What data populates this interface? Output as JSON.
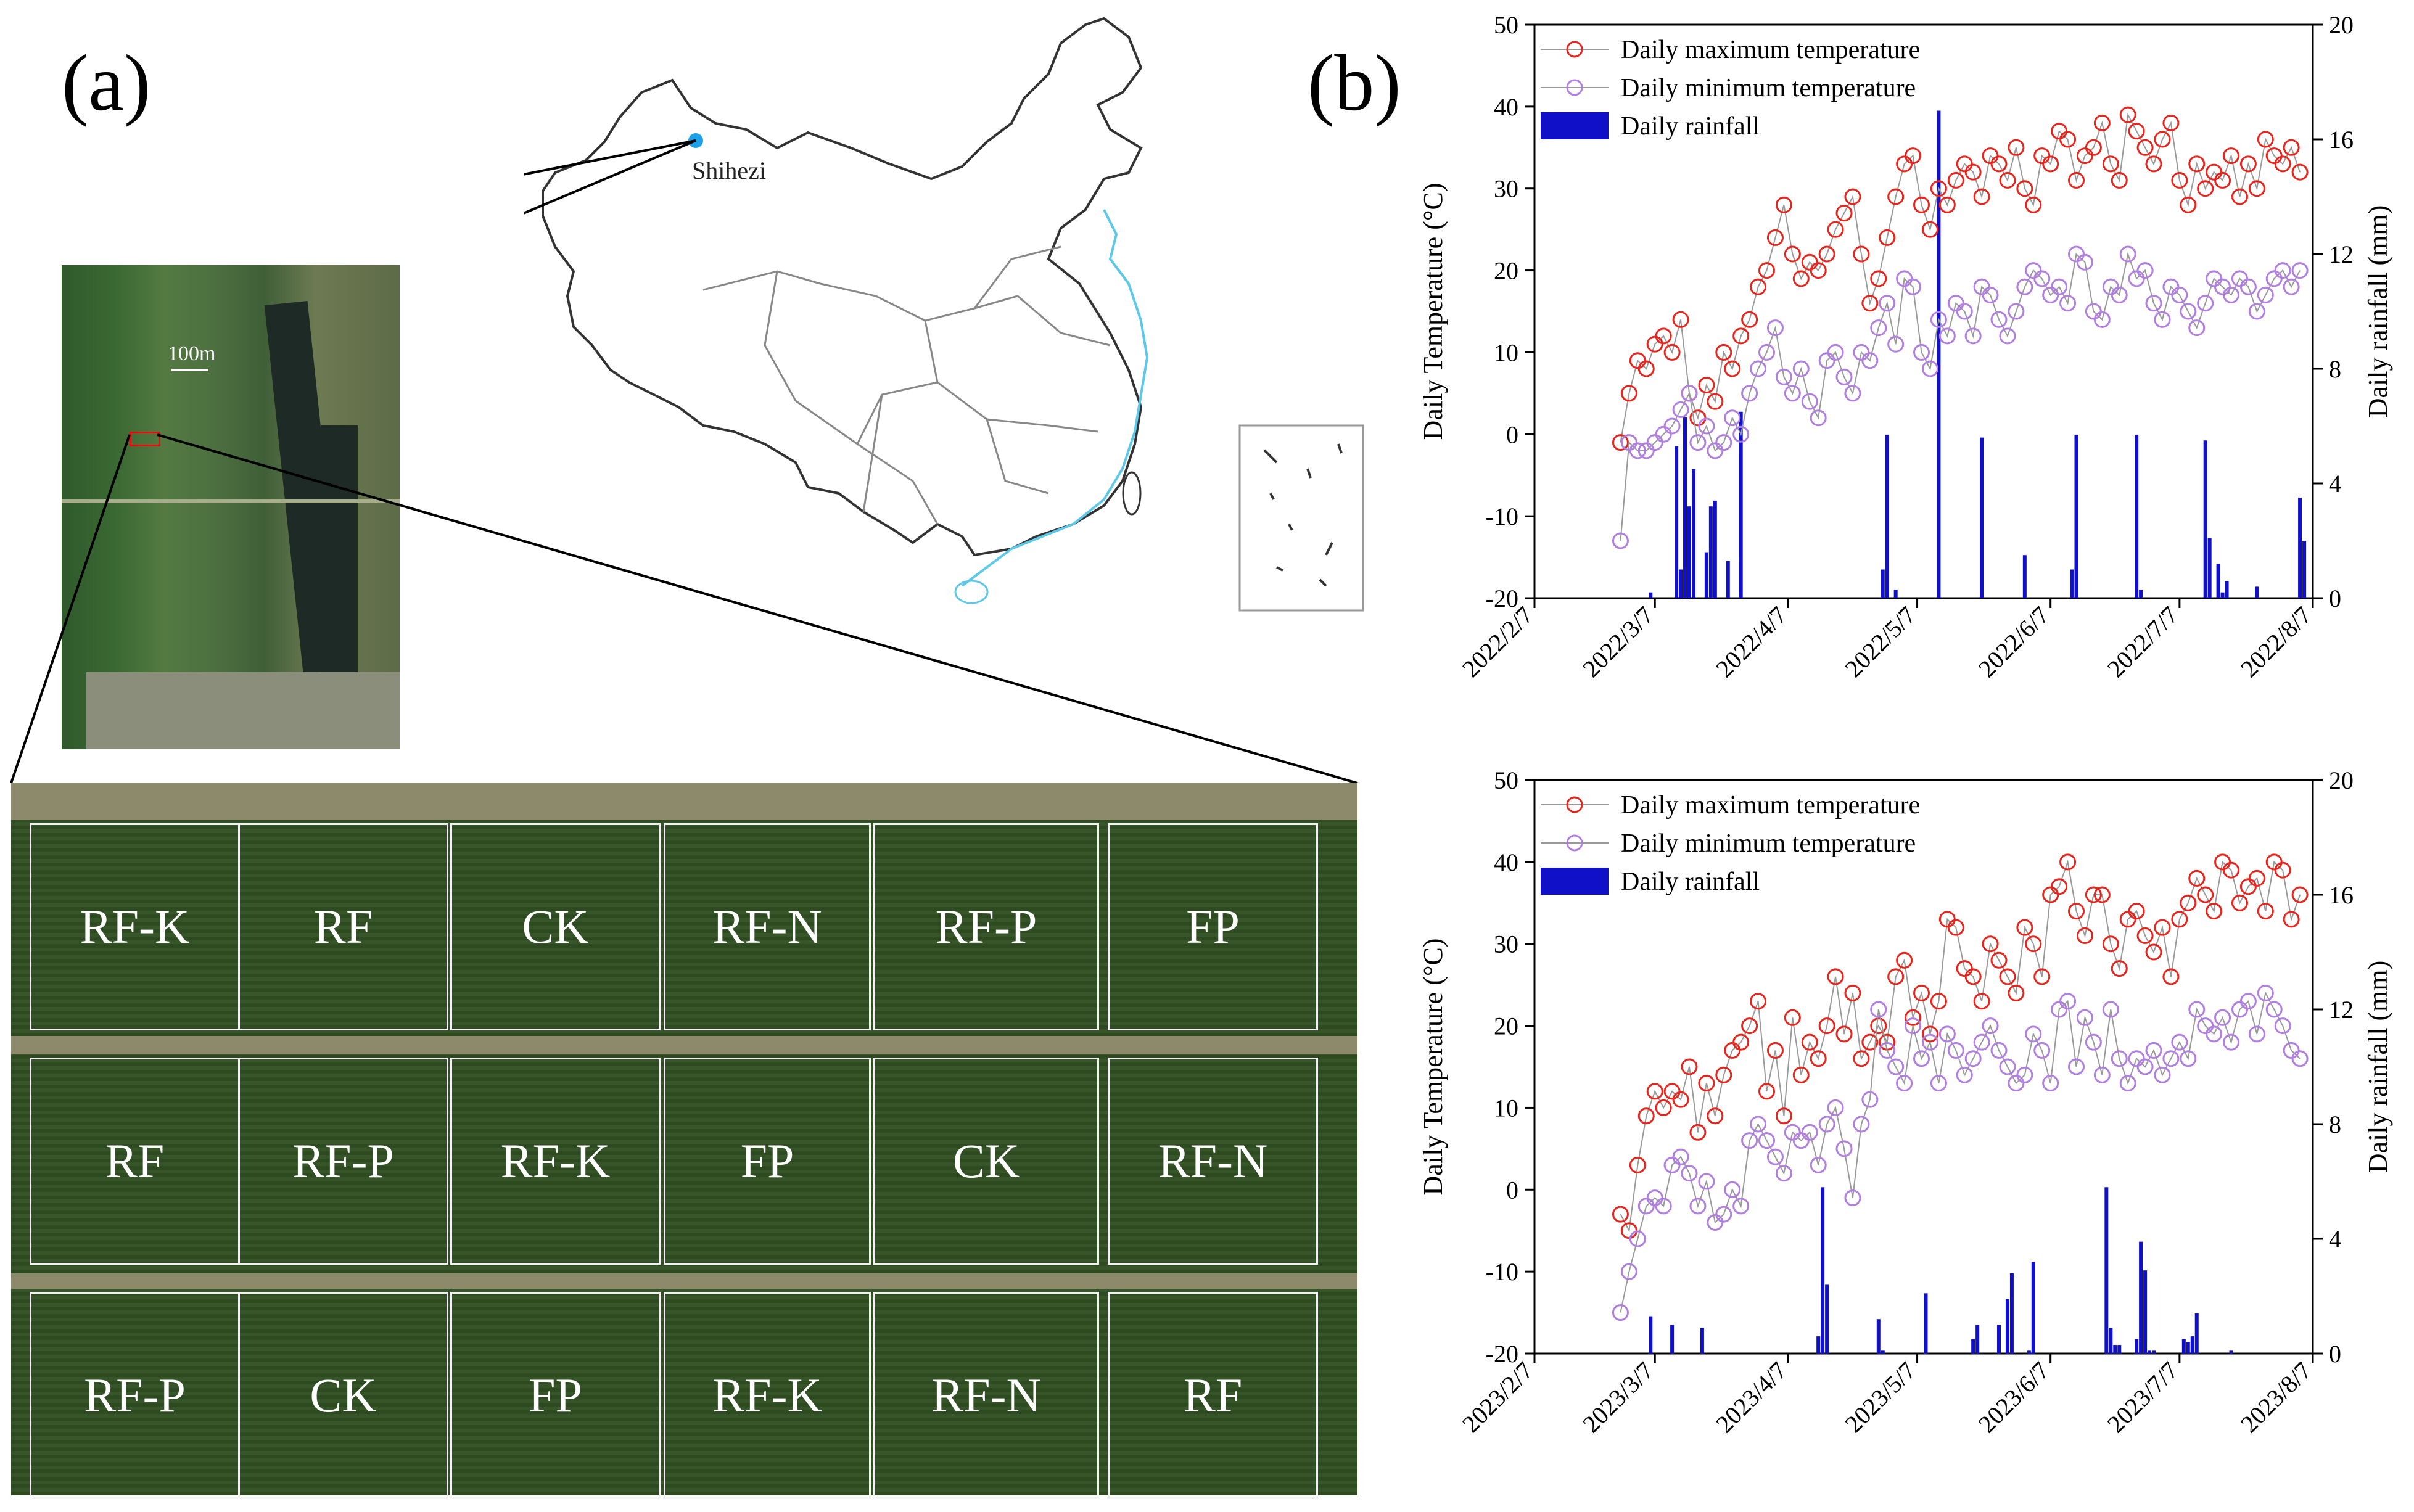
{
  "panel_labels": {
    "a": "(a)",
    "b": "(b)"
  },
  "map": {
    "site_label": "Shihezi",
    "scale_label": "100m"
  },
  "plots": {
    "rows": [
      [
        "RF-K",
        "RF",
        "CK",
        "RF-N",
        "RF-P",
        "FP"
      ],
      [
        "RF",
        "RF-P",
        "RF-K",
        "FP",
        "CK",
        "RF-N"
      ],
      [
        "RF-P",
        "CK",
        "FP",
        "RF-K",
        "RF-N",
        "RF"
      ]
    ]
  },
  "colors": {
    "tmax": "#e8251d",
    "tmin": "#b07fe0",
    "rain": "#1010c8"
  },
  "chart_data": [
    {
      "type": "line",
      "title": "",
      "year": 2022,
      "xlabel": "",
      "ylabel": "Daily Temperature (°C)",
      "ylabel_right": "Daily rainfall (mm)",
      "ylim": [
        -20,
        50
      ],
      "ylim_right": [
        0,
        20
      ],
      "yticks": [
        "-20",
        "-10",
        "0",
        "10",
        "20",
        "30",
        "40",
        "50"
      ],
      "yticks_right": [
        "0",
        "4",
        "8",
        "12",
        "16",
        "20"
      ],
      "x_ticks": [
        "2022/2/7",
        "2022/3/7",
        "2022/4/7",
        "2022/5/7",
        "2022/6/7",
        "2022/7/7",
        "2022/8/7"
      ],
      "x_range_days": [
        0,
        181
      ],
      "legend": [
        "Daily maximum temperature",
        "Daily minimum temperature",
        "Daily rainfall"
      ],
      "series": [
        {
          "name": "Daily maximum temperature",
          "x": [
            20,
            22,
            24,
            26,
            28,
            30,
            32,
            34,
            36,
            38,
            40,
            42,
            44,
            46,
            48,
            50,
            52,
            54,
            56,
            58,
            60,
            62,
            64,
            66,
            68,
            70,
            72,
            74,
            76,
            78,
            80,
            82,
            84,
            86,
            88,
            90,
            92,
            94,
            96,
            98,
            100,
            102,
            104,
            106,
            108,
            110,
            112,
            114,
            116,
            118,
            120,
            122,
            124,
            126,
            128,
            130,
            132,
            134,
            136,
            138,
            140,
            142,
            144,
            146,
            148,
            150,
            152,
            154,
            156,
            158,
            160,
            162,
            164,
            166,
            168,
            170,
            172,
            174,
            176,
            178
          ],
          "values": [
            -1,
            5,
            9,
            8,
            11,
            12,
            10,
            14,
            5,
            2,
            6,
            4,
            10,
            8,
            12,
            14,
            18,
            20,
            24,
            28,
            22,
            19,
            21,
            20,
            22,
            25,
            27,
            29,
            22,
            16,
            19,
            24,
            29,
            33,
            34,
            28,
            25,
            30,
            28,
            31,
            33,
            32,
            29,
            34,
            33,
            31,
            35,
            30,
            28,
            34,
            33,
            37,
            36,
            31,
            34,
            35,
            38,
            33,
            31,
            39,
            37,
            35,
            33,
            36,
            38,
            31,
            28,
            33,
            30,
            32,
            31,
            34,
            29,
            33,
            30,
            36,
            34,
            33,
            35,
            32
          ]
        },
        {
          "name": "Daily minimum temperature",
          "x": [
            20,
            22,
            24,
            26,
            28,
            30,
            32,
            34,
            36,
            38,
            40,
            42,
            44,
            46,
            48,
            50,
            52,
            54,
            56,
            58,
            60,
            62,
            64,
            66,
            68,
            70,
            72,
            74,
            76,
            78,
            80,
            82,
            84,
            86,
            88,
            90,
            92,
            94,
            96,
            98,
            100,
            102,
            104,
            106,
            108,
            110,
            112,
            114,
            116,
            118,
            120,
            122,
            124,
            126,
            128,
            130,
            132,
            134,
            136,
            138,
            140,
            142,
            144,
            146,
            148,
            150,
            152,
            154,
            156,
            158,
            160,
            162,
            164,
            166,
            168,
            170,
            172,
            174,
            176,
            178
          ],
          "values": [
            -13,
            -1,
            -2,
            -2,
            -1,
            0,
            1,
            3,
            5,
            -1,
            1,
            -2,
            -1,
            2,
            0,
            5,
            8,
            10,
            13,
            7,
            5,
            8,
            4,
            2,
            9,
            10,
            7,
            5,
            10,
            9,
            13,
            16,
            11,
            19,
            18,
            10,
            8,
            14,
            12,
            16,
            15,
            12,
            18,
            17,
            14,
            12,
            15,
            18,
            20,
            19,
            17,
            18,
            16,
            22,
            21,
            15,
            14,
            18,
            17,
            22,
            19,
            20,
            16,
            14,
            18,
            17,
            15,
            13,
            16,
            19,
            18,
            17,
            19,
            18,
            15,
            17,
            19,
            20,
            18,
            20
          ]
        },
        {
          "name": "Daily rainfall",
          "bars": true,
          "x": [
            27,
            33,
            34,
            35,
            36,
            37,
            40,
            41,
            42,
            45,
            48,
            81,
            82,
            84,
            94,
            104,
            114,
            125,
            126,
            140,
            141,
            156,
            157,
            159,
            160,
            161,
            168,
            178,
            179
          ],
          "values": [
            0.2,
            5.3,
            1.0,
            6.3,
            3.2,
            4.5,
            1.6,
            3.2,
            3.4,
            1.3,
            6.5,
            1.0,
            5.7,
            0.3,
            17.0,
            5.6,
            1.5,
            1.0,
            5.7,
            5.7,
            0.3,
            5.5,
            2.1,
            1.2,
            0.2,
            0.6,
            0.4,
            3.5,
            2.0
          ]
        }
      ]
    },
    {
      "type": "line",
      "title": "",
      "year": 2023,
      "xlabel": "",
      "ylabel": "Daily Temperature (°C)",
      "ylabel_right": "Daily rainfall (mm)",
      "ylim": [
        -20,
        50
      ],
      "ylim_right": [
        0,
        20
      ],
      "yticks": [
        "-20",
        "-10",
        "0",
        "10",
        "20",
        "30",
        "40",
        "50"
      ],
      "yticks_right": [
        "0",
        "4",
        "8",
        "12",
        "16",
        "20"
      ],
      "x_ticks": [
        "2023/2/7",
        "2023/3/7",
        "2023/4/7",
        "2023/5/7",
        "2023/6/7",
        "2023/7/7",
        "2023/8/7"
      ],
      "x_range_days": [
        0,
        181
      ],
      "legend": [
        "Daily maximum temperature",
        "Daily minimum temperature",
        "Daily rainfall"
      ],
      "series": [
        {
          "name": "Daily maximum temperature",
          "x": [
            20,
            22,
            24,
            26,
            28,
            30,
            32,
            34,
            36,
            38,
            40,
            42,
            44,
            46,
            48,
            50,
            52,
            54,
            56,
            58,
            60,
            62,
            64,
            66,
            68,
            70,
            72,
            74,
            76,
            78,
            80,
            82,
            84,
            86,
            88,
            90,
            92,
            94,
            96,
            98,
            100,
            102,
            104,
            106,
            108,
            110,
            112,
            114,
            116,
            118,
            120,
            122,
            124,
            126,
            128,
            130,
            132,
            134,
            136,
            138,
            140,
            142,
            144,
            146,
            148,
            150,
            152,
            154,
            156,
            158,
            160,
            162,
            164,
            166,
            168,
            170,
            172,
            174,
            176,
            178
          ],
          "values": [
            -3,
            -5,
            3,
            9,
            12,
            10,
            12,
            11,
            15,
            7,
            13,
            9,
            14,
            17,
            18,
            20,
            23,
            12,
            17,
            9,
            21,
            14,
            18,
            16,
            20,
            26,
            19,
            24,
            16,
            18,
            20,
            18,
            26,
            28,
            21,
            24,
            19,
            23,
            33,
            32,
            27,
            26,
            23,
            30,
            28,
            26,
            24,
            32,
            30,
            26,
            36,
            37,
            40,
            34,
            31,
            36,
            36,
            30,
            27,
            33,
            34,
            31,
            29,
            32,
            26,
            33,
            35,
            38,
            36,
            34,
            40,
            39,
            35,
            37,
            38,
            34,
            40,
            39,
            33,
            36
          ]
        },
        {
          "name": "Daily minimum temperature",
          "x": [
            20,
            22,
            24,
            26,
            28,
            30,
            32,
            34,
            36,
            38,
            40,
            42,
            44,
            46,
            48,
            50,
            52,
            54,
            56,
            58,
            60,
            62,
            64,
            66,
            68,
            70,
            72,
            74,
            76,
            78,
            80,
            82,
            84,
            86,
            88,
            90,
            92,
            94,
            96,
            98,
            100,
            102,
            104,
            106,
            108,
            110,
            112,
            114,
            116,
            118,
            120,
            122,
            124,
            126,
            128,
            130,
            132,
            134,
            136,
            138,
            140,
            142,
            144,
            146,
            148,
            150,
            152,
            154,
            156,
            158,
            160,
            162,
            164,
            166,
            168,
            170,
            172,
            174,
            176,
            178
          ],
          "values": [
            -15,
            -10,
            -6,
            -2,
            -1,
            -2,
            3,
            4,
            2,
            -2,
            1,
            -4,
            -3,
            0,
            -2,
            6,
            8,
            6,
            4,
            2,
            7,
            6,
            7,
            3,
            8,
            10,
            5,
            -1,
            8,
            11,
            22,
            17,
            15,
            13,
            20,
            16,
            18,
            13,
            19,
            17,
            14,
            16,
            18,
            20,
            17,
            15,
            13,
            14,
            19,
            17,
            13,
            22,
            23,
            15,
            21,
            18,
            14,
            22,
            16,
            13,
            16,
            15,
            17,
            14,
            16,
            18,
            16,
            22,
            20,
            19,
            21,
            18,
            22,
            23,
            19,
            24,
            22,
            20,
            17,
            16
          ]
        },
        {
          "name": "Daily rainfall",
          "bars": true,
          "x": [
            27,
            32,
            39,
            66,
            67,
            68,
            80,
            81,
            91,
            102,
            103,
            108,
            110,
            111,
            115,
            116,
            133,
            134,
            135,
            136,
            140,
            141,
            142,
            143,
            144,
            151,
            152,
            153,
            154,
            162
          ],
          "values": [
            1.3,
            1.0,
            0.9,
            0.6,
            5.8,
            2.4,
            1.2,
            0.1,
            2.1,
            0.5,
            1.0,
            1.0,
            1.9,
            2.8,
            0.1,
            3.2,
            5.8,
            0.9,
            0.3,
            0.3,
            0.5,
            3.9,
            2.9,
            0.1,
            0.1,
            0.5,
            0.4,
            0.6,
            1.4,
            0.1
          ]
        }
      ]
    }
  ]
}
